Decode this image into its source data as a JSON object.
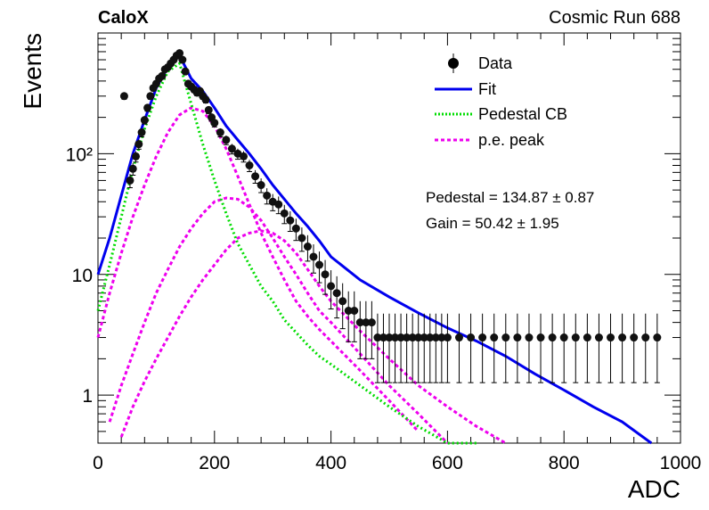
{
  "header": {
    "experiment": "CaloX",
    "run": "Cosmic Run 688"
  },
  "legend": {
    "entries": [
      {
        "label": "Data",
        "style": "marker"
      },
      {
        "label": "Fit",
        "style": "solid",
        "color": "#0000ee"
      },
      {
        "label": "Pedestal CB",
        "style": "dotted",
        "color": "#00dd00"
      },
      {
        "label": "p.e. peak",
        "style": "dashed",
        "color": "#ee00ee"
      }
    ]
  },
  "fit_results": {
    "pedestal": "Pedestal = 134.87 ± 0.87",
    "gain": "Gain = 50.42 ± 1.95"
  },
  "chart_data": {
    "type": "scatter",
    "title": "",
    "xlabel": "ADC",
    "ylabel": "Events",
    "xlim": [
      0,
      1000
    ],
    "ylim": [
      0.4,
      1000
    ],
    "yscale": "log",
    "x_ticks": [
      0,
      200,
      400,
      600,
      800,
      1000
    ],
    "y_ticks": [
      1,
      10,
      100
    ],
    "y_tick_labels": [
      "1",
      "10",
      "10²"
    ],
    "grid": false,
    "legend_position": "top-right",
    "series": [
      {
        "name": "Data",
        "kind": "points_with_errors",
        "x": [
          45,
          55,
          60,
          65,
          70,
          75,
          80,
          85,
          90,
          95,
          100,
          105,
          110,
          115,
          120,
          125,
          130,
          135,
          140,
          145,
          150,
          155,
          160,
          165,
          170,
          175,
          180,
          185,
          190,
          195,
          200,
          210,
          220,
          230,
          240,
          250,
          260,
          270,
          280,
          290,
          300,
          310,
          320,
          330,
          340,
          350,
          360,
          370,
          380,
          390,
          400,
          410,
          420,
          430,
          440,
          450,
          460,
          470,
          480,
          490,
          500,
          510,
          520,
          530,
          540,
          550,
          560,
          570,
          580,
          590,
          600,
          620,
          640,
          660,
          680,
          700,
          720,
          740,
          760,
          780,
          800,
          820,
          840,
          860,
          880,
          900,
          920,
          940,
          960
        ],
        "y": [
          300,
          60,
          75,
          95,
          120,
          150,
          190,
          240,
          300,
          350,
          380,
          420,
          440,
          500,
          520,
          560,
          600,
          650,
          680,
          600,
          480,
          380,
          360,
          340,
          320,
          330,
          300,
          280,
          230,
          200,
          180,
          150,
          130,
          110,
          100,
          95,
          80,
          65,
          55,
          45,
          40,
          38,
          32,
          28,
          24,
          20,
          17,
          14,
          12,
          10,
          8,
          7,
          6,
          5,
          5,
          4,
          4,
          4,
          3,
          3,
          3,
          3,
          3,
          3,
          3,
          3,
          3,
          3,
          3,
          3,
          3,
          3,
          3,
          3,
          3,
          3,
          3,
          3,
          3,
          3,
          3,
          3,
          3,
          3,
          3,
          3,
          3,
          3,
          3
        ]
      },
      {
        "name": "Fit",
        "kind": "line",
        "x": [
          0,
          20,
          40,
          60,
          80,
          100,
          120,
          140,
          160,
          180,
          200,
          220,
          240,
          260,
          280,
          300,
          320,
          340,
          360,
          380,
          400,
          450,
          500,
          550,
          600,
          650,
          700,
          750,
          800,
          850,
          900,
          950
        ],
        "y": [
          10,
          20,
          45,
          100,
          190,
          350,
          520,
          650,
          420,
          330,
          240,
          170,
          130,
          100,
          75,
          55,
          42,
          32,
          25,
          19,
          14,
          9,
          6.5,
          4.8,
          3.6,
          2.8,
          2.1,
          1.5,
          1.1,
          0.8,
          0.6,
          0.4
        ]
      },
      {
        "name": "Pedestal CB",
        "kind": "line",
        "x": [
          0,
          20,
          40,
          60,
          80,
          100,
          120,
          140,
          160,
          180,
          200,
          220,
          240,
          260,
          280,
          300,
          320,
          340,
          360,
          380,
          400,
          450,
          500,
          550,
          600,
          650
        ],
        "y": [
          5,
          12,
          30,
          75,
          160,
          300,
          480,
          560,
          260,
          120,
          60,
          32,
          18,
          12,
          8,
          6,
          4.2,
          3.3,
          2.6,
          2.1,
          1.8,
          1.2,
          0.8,
          0.55,
          0.4,
          0.3
        ]
      },
      {
        "name": "p.e. peak 1",
        "kind": "line",
        "x": [
          0,
          20,
          40,
          60,
          80,
          100,
          120,
          140,
          160,
          180,
          200,
          220,
          240,
          260,
          280,
          300,
          320,
          340,
          360,
          380,
          400,
          450,
          500,
          550
        ],
        "y": [
          3,
          7,
          15,
          30,
          55,
          95,
          150,
          210,
          240,
          225,
          170,
          110,
          65,
          38,
          22,
          14,
          9,
          6,
          4.5,
          3.5,
          2.8,
          1.6,
          0.9,
          0.5
        ]
      },
      {
        "name": "p.e. peak 2",
        "kind": "line",
        "x": [
          20,
          40,
          60,
          80,
          100,
          120,
          140,
          160,
          180,
          200,
          220,
          240,
          260,
          280,
          300,
          320,
          340,
          360,
          380,
          400,
          450,
          500,
          550,
          600
        ],
        "y": [
          0.6,
          1.2,
          2.2,
          4,
          7,
          11,
          17,
          24,
          32,
          40,
          43,
          42,
          36,
          28,
          20,
          14,
          10,
          7,
          5,
          4,
          2.2,
          1.2,
          0.7,
          0.4
        ]
      },
      {
        "name": "p.e. peak 3",
        "kind": "line",
        "x": [
          40,
          60,
          80,
          100,
          120,
          140,
          160,
          180,
          200,
          220,
          240,
          260,
          280,
          300,
          320,
          340,
          360,
          380,
          400,
          450,
          500,
          550,
          600,
          650,
          700
        ],
        "y": [
          0.45,
          0.8,
          1.3,
          2,
          3,
          4.5,
          6.5,
          9,
          12,
          16,
          20,
          22,
          23,
          22,
          19,
          15,
          11,
          8,
          6,
          3.4,
          2,
          1.2,
          0.8,
          0.55,
          0.4
        ]
      }
    ]
  }
}
